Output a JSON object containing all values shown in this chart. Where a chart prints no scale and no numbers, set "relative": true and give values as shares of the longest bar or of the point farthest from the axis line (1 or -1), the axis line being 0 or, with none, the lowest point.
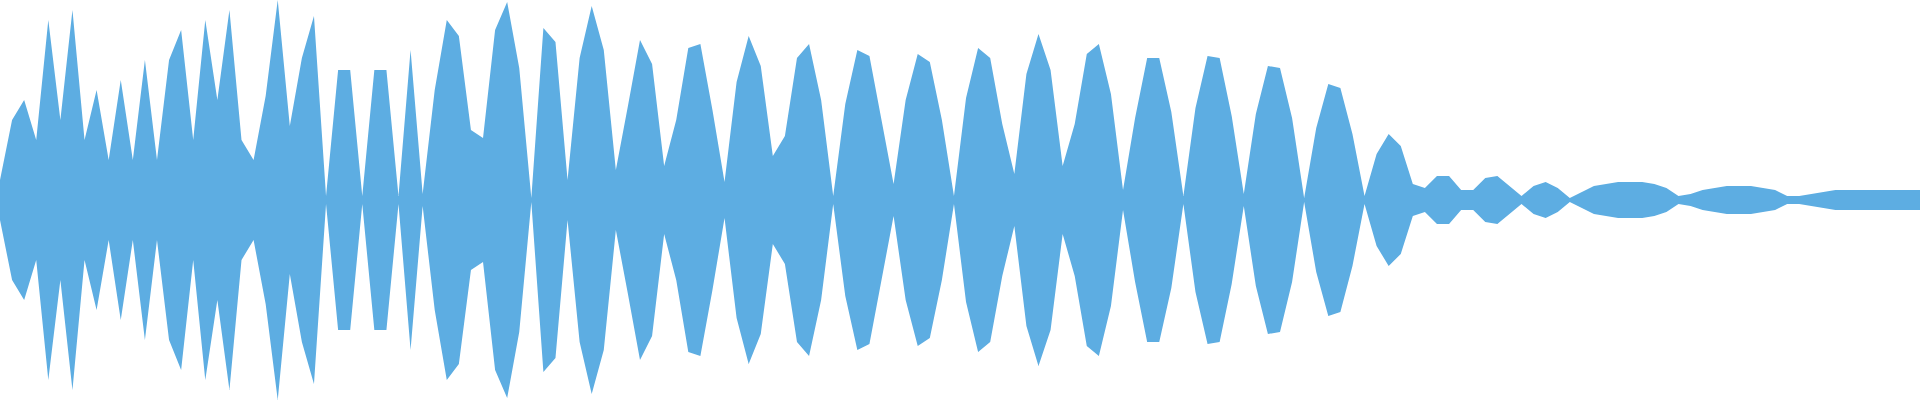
{
  "chart_data": {
    "type": "area",
    "relative": true,
    "categories": [
      null,
      null,
      null,
      null,
      null,
      null,
      null,
      null,
      null,
      null,
      null,
      null,
      null,
      null,
      null,
      null,
      null,
      null,
      null,
      null,
      null,
      null,
      null,
      null,
      null,
      null,
      null,
      null,
      null,
      null,
      null,
      null,
      null,
      null,
      null,
      null,
      null,
      null,
      null,
      null,
      null,
      null,
      null,
      null,
      null,
      null,
      null,
      null,
      null,
      null,
      null,
      null,
      null,
      null,
      null,
      null,
      null,
      null,
      null,
      null,
      null,
      null,
      null,
      null,
      null,
      null,
      null,
      null,
      null,
      null,
      null,
      null,
      null,
      null,
      null,
      null,
      null,
      null,
      null,
      null,
      null,
      null,
      null,
      null,
      null,
      null,
      null,
      null,
      null,
      null,
      null,
      null,
      null,
      null,
      null,
      null,
      null,
      null,
      null,
      null,
      null,
      null,
      null,
      null,
      null,
      null,
      null,
      null,
      null,
      null,
      null,
      null,
      null,
      null,
      null,
      null,
      null,
      null,
      null,
      null,
      null,
      null,
      null,
      null,
      null,
      null,
      null,
      null,
      null,
      null,
      null,
      null,
      null,
      null,
      null,
      null,
      null,
      null,
      null,
      null,
      null,
      null,
      null,
      null,
      null,
      null,
      null,
      null,
      null,
      null,
      null,
      null,
      null,
      null,
      null,
      null,
      null,
      null,
      null,
      null
    ],
    "series": [
      {
        "color": "#5dade2",
        "values": [
          0.55,
          0.7,
          0.75,
          0.65,
          0.95,
          0.7,
          0.975,
          0.65,
          0.775,
          0.6,
          0.8,
          0.6,
          0.85,
          0.6,
          0.85,
          0.925,
          0.65,
          0.95,
          0.75,
          0.975,
          0.65,
          0.6,
          0.76,
          1,
          0.685,
          0.855,
          0.96,
          0.51,
          0.825,
          0.825,
          0.51,
          0.825,
          0.825,
          0.51,
          0.875,
          0.515,
          0.775,
          0.95,
          0.91,
          0.675,
          0.655,
          0.925,
          0.995,
          0.83,
          0.505,
          0.93,
          0.895,
          0.55,
          0.855,
          0.985,
          0.875,
          0.575,
          0.735,
          0.9,
          0.84,
          0.585,
          0.7,
          0.88,
          0.89,
          0.725,
          0.545,
          0.795,
          0.91,
          0.835,
          0.61,
          0.66,
          0.855,
          0.89,
          0.75,
          0.51,
          0.74,
          0.875,
          0.86,
          0.7,
          0.54,
          0.75,
          0.865,
          0.845,
          0.7,
          0.51,
          0.755,
          0.88,
          0.855,
          0.69,
          0.565,
          0.815,
          0.915,
          0.825,
          0.585,
          0.69,
          0.865,
          0.89,
          0.765,
          0.525,
          0.705,
          0.855,
          0.855,
          0.72,
          0.51,
          0.73,
          0.86,
          0.855,
          0.71,
          0.515,
          0.715,
          0.835,
          0.83,
          0.705,
          0.505,
          0.68,
          0.79,
          0.78,
          0.665,
          0.51,
          0.615,
          0.665,
          0.635,
          0.54,
          0.53,
          0.56,
          0.56,
          0.525,
          0.525,
          0.555,
          0.56,
          0.535,
          0.51,
          0.535,
          0.545,
          0.53,
          0.505,
          0.52,
          0.535,
          0.54,
          0.545,
          0.545,
          0.545,
          0.54,
          0.53,
          0.51,
          0.515,
          0.525,
          0.53,
          0.535,
          0.535,
          0.535,
          0.53,
          0.525,
          0.51,
          0.51,
          0.515,
          0.52,
          0.525,
          0.525,
          0.525,
          0.525,
          0.525,
          0.525,
          0.525,
          0.525
        ]
      },
      {
        "color": "#ffffff",
        "values": [
          0.45,
          0.3,
          0.25,
          0.35,
          0.05,
          0.3,
          0.025,
          0.35,
          0.225,
          0.4,
          0.2,
          0.4,
          0.15,
          0.4,
          0.15,
          0.075,
          0.35,
          0.05,
          0.25,
          0.025,
          0.35,
          0.4,
          0.24,
          0,
          0.315,
          0.145,
          0.04,
          0.49,
          0.175,
          0.175,
          0.49,
          0.175,
          0.175,
          0.49,
          0.125,
          0.485,
          0.225,
          0.05,
          0.09,
          0.325,
          0.345,
          0.075,
          0.005,
          0.17,
          0.495,
          0.07,
          0.105,
          0.45,
          0.145,
          0.015,
          0.125,
          0.425,
          0.265,
          0.1,
          0.16,
          0.415,
          0.3,
          0.12,
          0.11,
          0.275,
          0.455,
          0.205,
          0.09,
          0.165,
          0.39,
          0.34,
          0.145,
          0.11,
          0.25,
          0.49,
          0.26,
          0.125,
          0.14,
          0.3,
          0.46,
          0.25,
          0.135,
          0.155,
          0.3,
          0.49,
          0.245,
          0.12,
          0.145,
          0.31,
          0.435,
          0.185,
          0.085,
          0.175,
          0.415,
          0.31,
          0.135,
          0.11,
          0.235,
          0.475,
          0.295,
          0.145,
          0.145,
          0.28,
          0.49,
          0.27,
          0.14,
          0.145,
          0.29,
          0.485,
          0.285,
          0.165,
          0.17,
          0.295,
          0.495,
          0.32,
          0.21,
          0.22,
          0.335,
          0.49,
          0.385,
          0.335,
          0.365,
          0.46,
          0.47,
          0.44,
          0.44,
          0.475,
          0.475,
          0.445,
          0.44,
          0.465,
          0.49,
          0.465,
          0.455,
          0.47,
          0.495,
          0.48,
          0.465,
          0.46,
          0.455,
          0.455,
          0.455,
          0.46,
          0.47,
          0.49,
          0.485,
          0.475,
          0.47,
          0.465,
          0.465,
          0.465,
          0.47,
          0.475,
          0.49,
          0.49,
          0.485,
          0.48,
          0.475,
          0.475,
          0.475,
          0.475,
          0.475,
          0.475,
          0.475,
          0.475
        ]
      }
    ]
  }
}
